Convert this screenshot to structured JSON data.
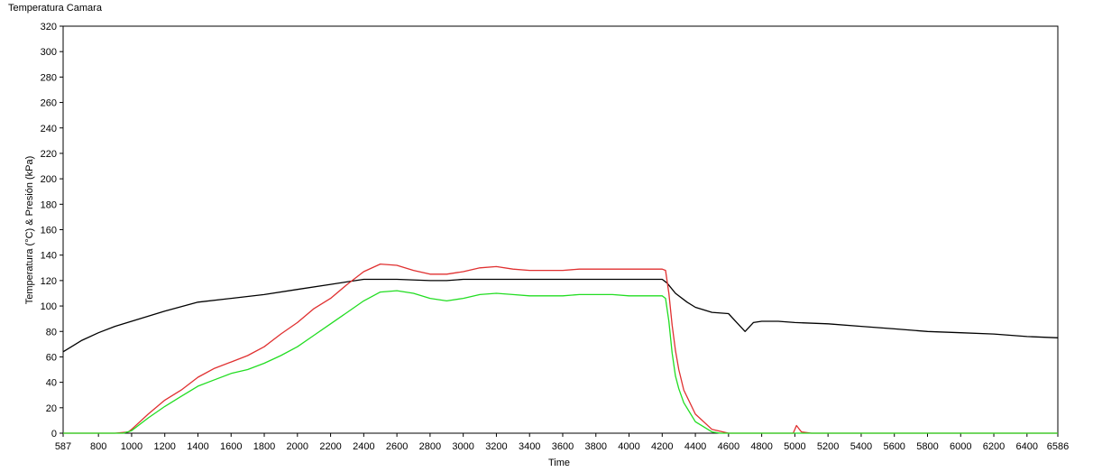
{
  "chart_data": {
    "type": "line",
    "title": "Temperatura Camara",
    "xlabel": "Time",
    "ylabel": "Temperatura (°C) & Presión (kPa)",
    "xlim": [
      587,
      6586
    ],
    "ylim": [
      0,
      320
    ],
    "x_ticks": [
      "587",
      "800",
      "1000",
      "1200",
      "1400",
      "1600",
      "1800",
      "2000",
      "2200",
      "2400",
      "2600",
      "2800",
      "3000",
      "3200",
      "3400",
      "3600",
      "3800",
      "4000",
      "4200",
      "4400",
      "4600",
      "4800",
      "5000",
      "5200",
      "5400",
      "5600",
      "5800",
      "6000",
      "6200",
      "6400",
      "6586"
    ],
    "y_ticks": [
      "0",
      "20",
      "40",
      "60",
      "80",
      "100",
      "120",
      "140",
      "160",
      "180",
      "200",
      "220",
      "240",
      "260",
      "280",
      "300",
      "320"
    ],
    "grid": false,
    "series": [
      {
        "color": "#000000",
        "x": [
          587,
          700,
          800,
          900,
          1000,
          1200,
          1400,
          1600,
          1800,
          2000,
          2200,
          2400,
          2600,
          2800,
          2900,
          3000,
          3200,
          3400,
          3600,
          3800,
          4000,
          4200,
          4230,
          4280,
          4350,
          4400,
          4500,
          4600,
          4650,
          4700,
          4750,
          4800,
          4900,
          5000,
          5200,
          5400,
          5600,
          5800,
          6000,
          6200,
          6400,
          6586
        ],
        "y": [
          64,
          73,
          79,
          84,
          88,
          96,
          103,
          106,
          109,
          113,
          117,
          121,
          121,
          120,
          120,
          121,
          121,
          121,
          121,
          121,
          121,
          121,
          118,
          110,
          103,
          99,
          95,
          94,
          87,
          80,
          87,
          88,
          88,
          87,
          86,
          84,
          82,
          80,
          79,
          78,
          76,
          75
        ]
      },
      {
        "color": "#e03030",
        "x": [
          587,
          900,
          980,
          1000,
          1100,
          1200,
          1300,
          1400,
          1500,
          1600,
          1700,
          1800,
          1900,
          2000,
          2100,
          2200,
          2300,
          2400,
          2500,
          2600,
          2700,
          2800,
          2900,
          3000,
          3100,
          3200,
          3300,
          3400,
          3500,
          3600,
          3700,
          3800,
          3900,
          4000,
          4100,
          4200,
          4220,
          4240,
          4260,
          4280,
          4300,
          4330,
          4400,
          4500,
          4600,
          4800,
          4990,
          5010,
          5040,
          5100,
          6586
        ],
        "y": [
          0,
          0,
          1,
          3,
          15,
          26,
          34,
          44,
          51,
          56,
          61,
          68,
          78,
          87,
          98,
          106,
          117,
          127,
          133,
          132,
          128,
          125,
          125,
          127,
          130,
          131,
          129,
          128,
          128,
          128,
          129,
          129,
          129,
          129,
          129,
          129,
          128,
          110,
          85,
          65,
          50,
          34,
          15,
          3,
          0,
          0,
          0,
          6,
          1,
          0,
          0
        ]
      },
      {
        "color": "#22dd22",
        "x": [
          587,
          950,
          1000,
          1100,
          1200,
          1300,
          1400,
          1500,
          1600,
          1700,
          1800,
          1900,
          2000,
          2100,
          2200,
          2300,
          2400,
          2500,
          2600,
          2700,
          2800,
          2900,
          3000,
          3100,
          3200,
          3300,
          3400,
          3500,
          3600,
          3700,
          3800,
          3900,
          4000,
          4100,
          4200,
          4220,
          4240,
          4260,
          4280,
          4300,
          4330,
          4400,
          4500,
          4550,
          6586
        ],
        "y": [
          0,
          0,
          2,
          12,
          21,
          29,
          37,
          42,
          47,
          50,
          55,
          61,
          68,
          77,
          86,
          95,
          104,
          111,
          112,
          110,
          106,
          104,
          106,
          109,
          110,
          109,
          108,
          108,
          108,
          109,
          109,
          109,
          108,
          108,
          108,
          106,
          88,
          63,
          45,
          35,
          24,
          9,
          1,
          0,
          0
        ]
      }
    ]
  }
}
